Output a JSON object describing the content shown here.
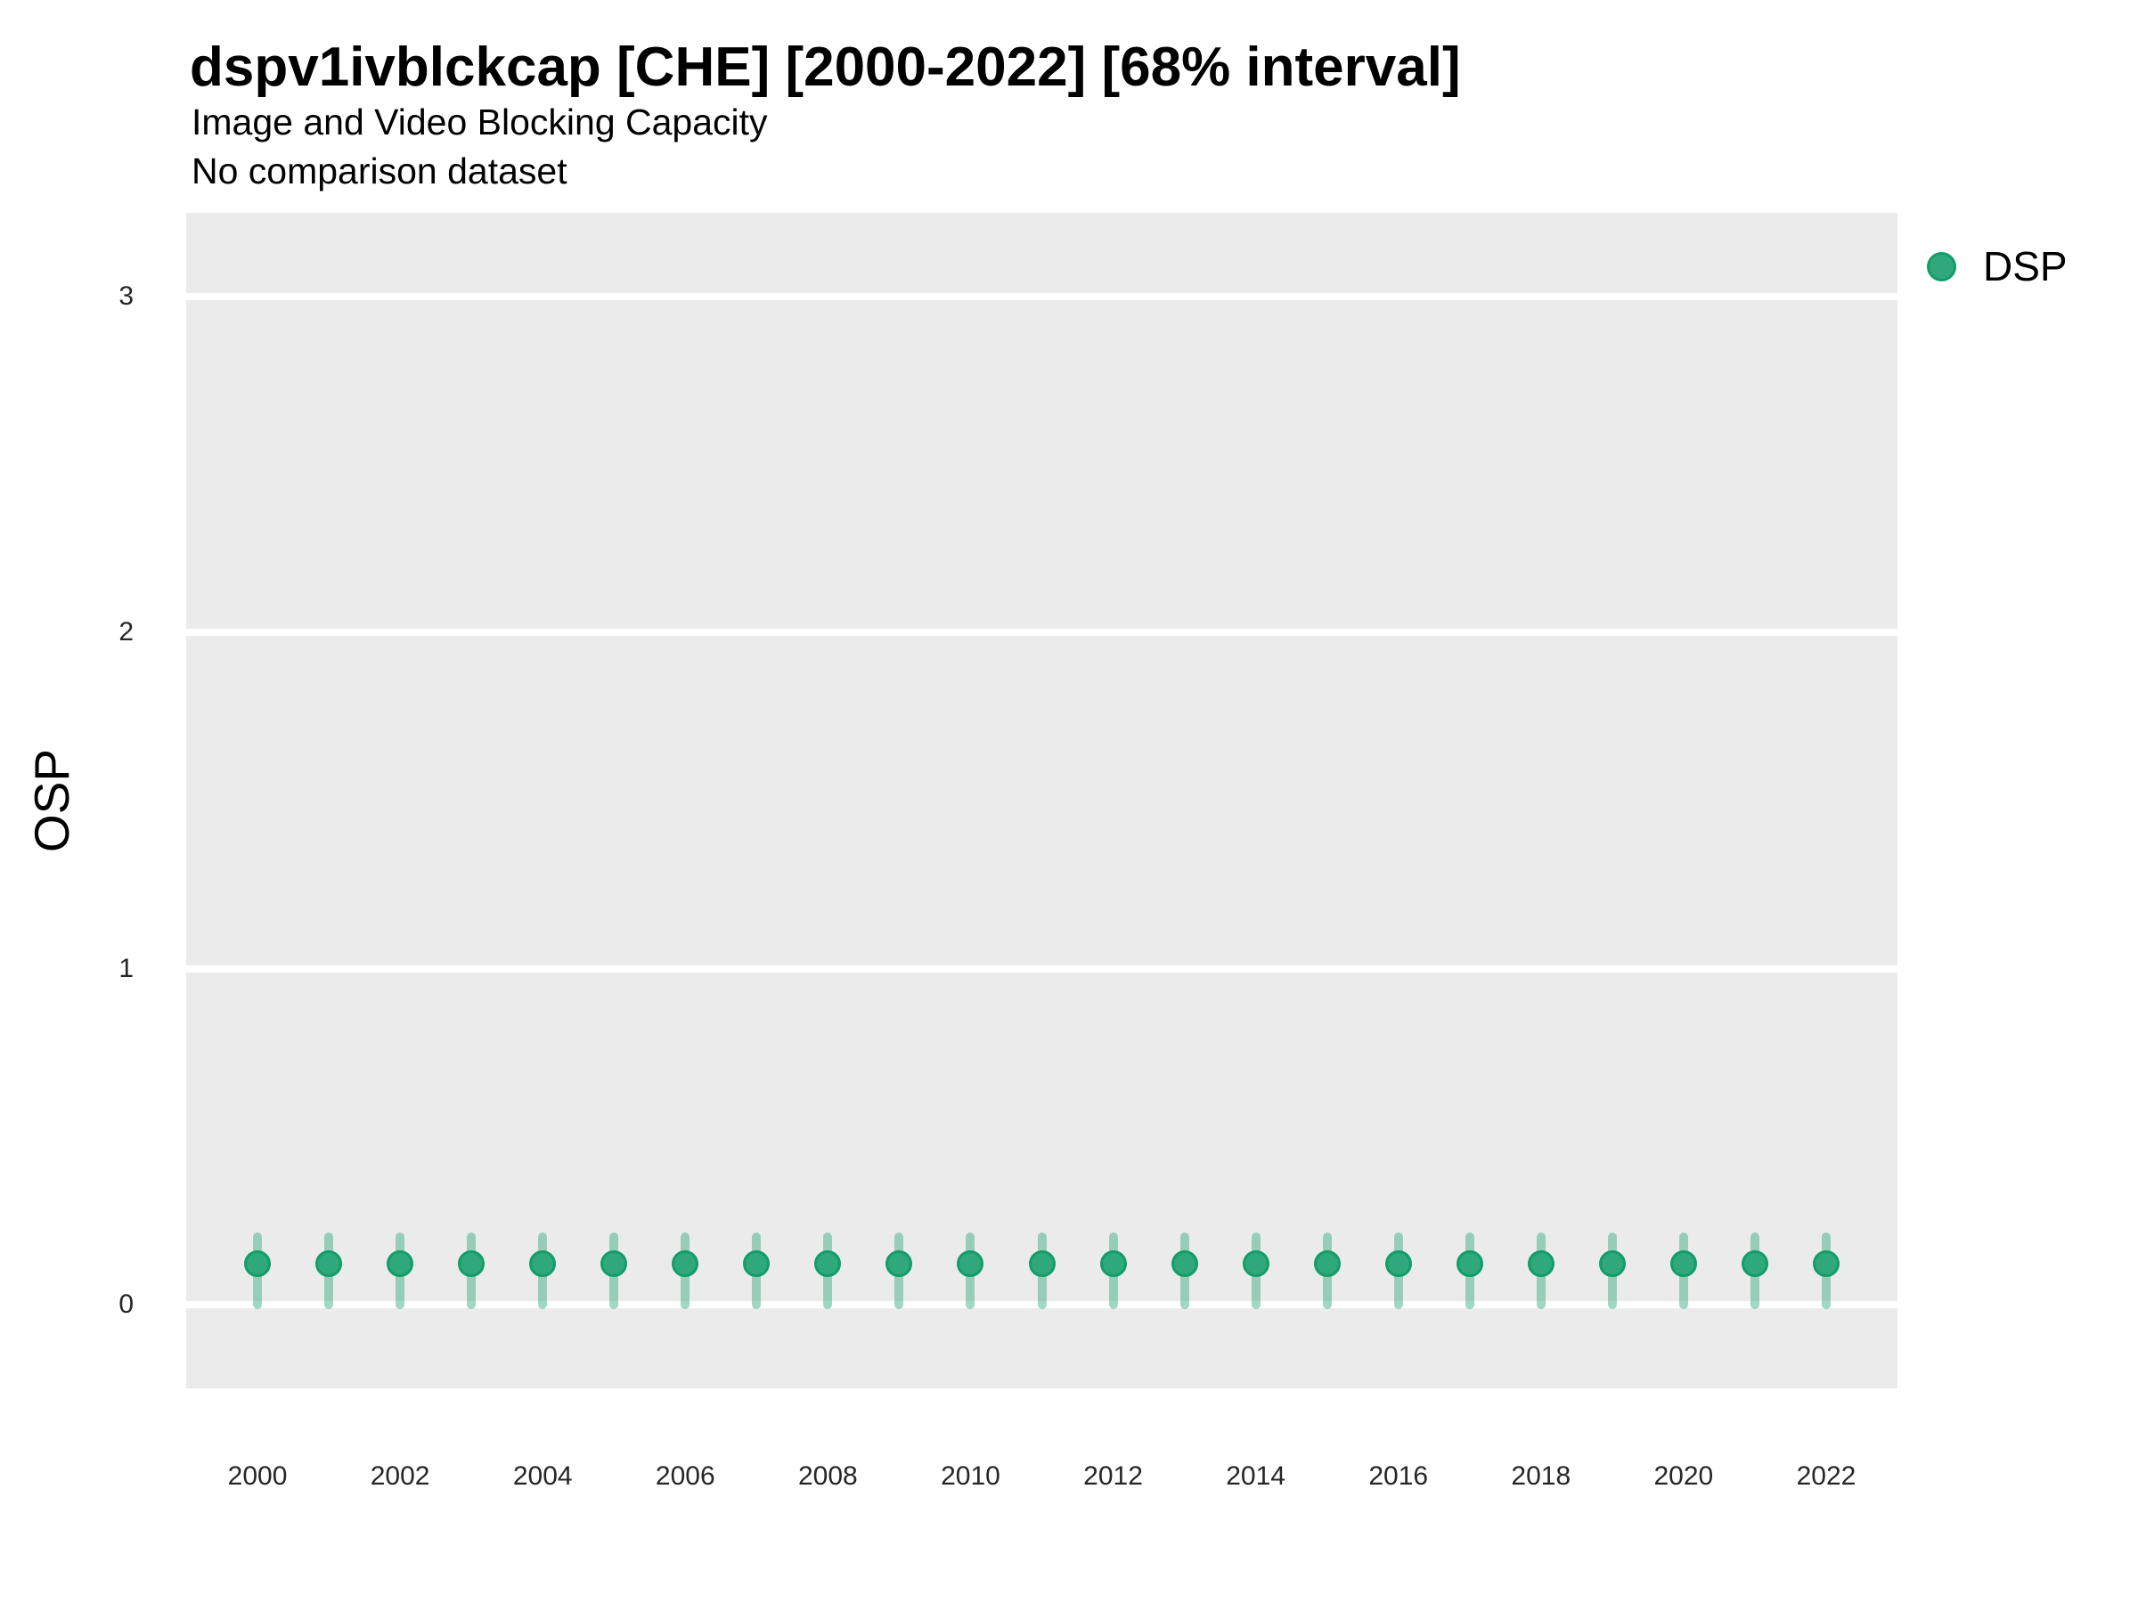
{
  "header": {
    "title": "dspv1ivblckcap [CHE] [2000-2022] [68% interval]",
    "subtitle": "Image and Video Blocking Capacity",
    "note": "No comparison dataset"
  },
  "legend": {
    "items": [
      {
        "label": "DSP",
        "marker": "circle"
      }
    ],
    "position": "right-top"
  },
  "colors": {
    "point_fill": "#2FA87C",
    "point_border": "#129D6A",
    "interval_fill": "rgba(47,168,124,0.45)",
    "panel_background": "#EBEBEB",
    "gridline": "#FFFFFF",
    "tick_text": "#262626",
    "title_text": "#000000"
  },
  "chart_data": {
    "type": "scatter",
    "title": "dspv1ivblckcap [CHE] [2000-2022] [68% interval]",
    "subtitle": "Image and Video Blocking Capacity",
    "note": "No comparison dataset",
    "xlabel": "",
    "ylabel": "OSP",
    "interval_level": "68%",
    "grid": "horizontal-major-only",
    "legend_position": "right-top",
    "xlim": [
      1999,
      2023
    ],
    "ylim": [
      -0.25,
      3.25
    ],
    "yticks": [
      0,
      1,
      2,
      3
    ],
    "xticks": [
      2000,
      2002,
      2004,
      2006,
      2008,
      2010,
      2012,
      2014,
      2016,
      2018,
      2020,
      2022
    ],
    "series": [
      {
        "name": "DSP",
        "x": [
          2000,
          2001,
          2002,
          2003,
          2004,
          2005,
          2006,
          2007,
          2008,
          2009,
          2010,
          2011,
          2012,
          2013,
          2014,
          2015,
          2016,
          2017,
          2018,
          2019,
          2020,
          2021,
          2022
        ],
        "y": [
          0.12,
          0.12,
          0.12,
          0.12,
          0.12,
          0.12,
          0.12,
          0.12,
          0.12,
          0.12,
          0.12,
          0.12,
          0.12,
          0.12,
          0.12,
          0.12,
          0.12,
          0.12,
          0.12,
          0.12,
          0.12,
          0.12,
          0.12
        ],
        "interval_low": [
          0.0,
          0.0,
          0.0,
          0.0,
          0.0,
          0.0,
          0.0,
          0.0,
          0.0,
          0.0,
          0.0,
          0.0,
          0.0,
          0.0,
          0.0,
          0.0,
          0.0,
          0.0,
          0.0,
          0.0,
          0.0,
          0.0,
          0.0
        ],
        "interval_high": [
          0.2,
          0.2,
          0.2,
          0.2,
          0.2,
          0.2,
          0.2,
          0.2,
          0.2,
          0.2,
          0.2,
          0.2,
          0.2,
          0.2,
          0.2,
          0.2,
          0.2,
          0.2,
          0.2,
          0.2,
          0.2,
          0.2,
          0.2
        ]
      }
    ]
  }
}
